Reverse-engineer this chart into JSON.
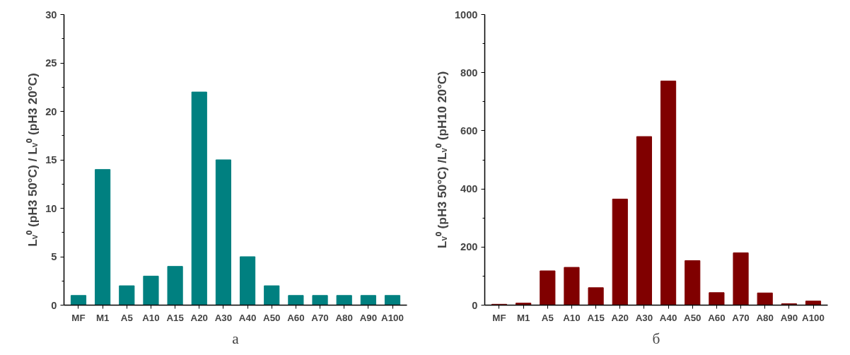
{
  "chart_data": [
    {
      "type": "bar",
      "ylabel": "Lᵥ⁰ (pH3 50°C) / Lᵥ⁰ (pH3 20°C)",
      "categories": [
        "MF",
        "M1",
        "A5",
        "A10",
        "A15",
        "A20",
        "A30",
        "A40",
        "A50",
        "A60",
        "A70",
        "A80",
        "A90",
        "A100"
      ],
      "series": [
        {
          "color": "#008080",
          "values": [
            1,
            14,
            2,
            3,
            4,
            22,
            15,
            5,
            2,
            1,
            1,
            1,
            1,
            1
          ]
        }
      ],
      "ylim": [
        0,
        30
      ],
      "yticks": [
        0,
        5,
        10,
        15,
        20,
        25,
        30
      ],
      "grid": false,
      "annotations": [
        "а"
      ]
    },
    {
      "type": "bar",
      "ylabel": "Lᵥ⁰ (pH3 50°C) /Lᵥ⁰ (pH10 20°C)",
      "categories": [
        "MF",
        "M1",
        "A5",
        "A10",
        "A15",
        "A20",
        "A30",
        "A40",
        "A50",
        "A60",
        "A70",
        "A80",
        "A90",
        "A100"
      ],
      "series": [
        {
          "color": "#800000",
          "values": [
            3,
            7,
            118,
            130,
            60,
            365,
            580,
            771,
            153,
            43,
            180,
            42,
            5,
            14
          ]
        }
      ],
      "ylim": [
        0,
        1000
      ],
      "yticks": [
        0,
        200,
        400,
        600,
        800,
        1000
      ],
      "grid": false,
      "annotations": [
        "б"
      ]
    }
  ]
}
